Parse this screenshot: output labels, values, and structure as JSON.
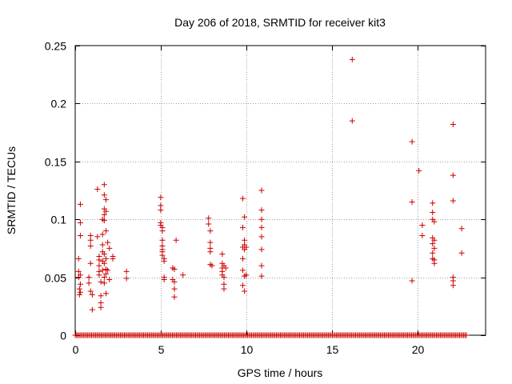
{
  "chart_data": {
    "type": "scatter",
    "title": "Day 206 of 2018, SRMTID for receiver kit3",
    "xlabel": "GPS time / hours",
    "ylabel": "SRMTID / TECUs",
    "xlim": [
      0,
      24
    ],
    "ylim": [
      0,
      0.25
    ],
    "xticks": [
      0,
      5,
      10,
      15,
      20
    ],
    "xtick_labels": [
      "0",
      "5",
      "10",
      "15",
      "20"
    ],
    "yticks": [
      0,
      0.05,
      0.1,
      0.15,
      0.2,
      0.25
    ],
    "ytick_labels": [
      "0",
      "0.05",
      "0.1",
      "0.15",
      "0.2",
      "0.25"
    ],
    "grid": true,
    "marker": "+",
    "color": "#cc0000",
    "baseline_zero": {
      "x_start": 0.0,
      "x_end": 22.9,
      "step": 0.08,
      "value": 0
    },
    "points": [
      [
        0.2,
        0.066
      ],
      [
        0.2,
        0.055
      ],
      [
        0.2,
        0.05
      ],
      [
        0.25,
        0.04
      ],
      [
        0.25,
        0.035
      ],
      [
        0.3,
        0.113
      ],
      [
        0.3,
        0.097
      ],
      [
        0.3,
        0.086
      ],
      [
        0.3,
        0.052
      ],
      [
        0.3,
        0.044
      ],
      [
        0.3,
        0.037
      ],
      [
        0.8,
        0.05
      ],
      [
        0.8,
        0.045
      ],
      [
        0.9,
        0.086
      ],
      [
        0.9,
        0.082
      ],
      [
        0.9,
        0.077
      ],
      [
        0.9,
        0.062
      ],
      [
        0.9,
        0.038
      ],
      [
        1.0,
        0.035
      ],
      [
        1.0,
        0.022
      ],
      [
        1.3,
        0.126
      ],
      [
        1.3,
        0.085
      ],
      [
        1.4,
        0.068
      ],
      [
        1.4,
        0.065
      ],
      [
        1.4,
        0.06
      ],
      [
        1.4,
        0.055
      ],
      [
        1.4,
        0.052
      ],
      [
        1.5,
        0.046
      ],
      [
        1.5,
        0.034
      ],
      [
        1.5,
        0.028
      ],
      [
        1.5,
        0.024
      ],
      [
        1.6,
        0.1
      ],
      [
        1.6,
        0.087
      ],
      [
        1.6,
        0.078
      ],
      [
        1.6,
        0.072
      ],
      [
        1.6,
        0.064
      ],
      [
        1.6,
        0.056
      ],
      [
        1.7,
        0.13
      ],
      [
        1.7,
        0.121
      ],
      [
        1.7,
        0.109
      ],
      [
        1.7,
        0.104
      ],
      [
        1.7,
        0.099
      ],
      [
        1.7,
        0.07
      ],
      [
        1.7,
        0.062
      ],
      [
        1.7,
        0.05
      ],
      [
        1.7,
        0.045
      ],
      [
        1.8,
        0.117
      ],
      [
        1.8,
        0.107
      ],
      [
        1.8,
        0.09
      ],
      [
        1.8,
        0.066
      ],
      [
        1.8,
        0.057
      ],
      [
        1.8,
        0.053
      ],
      [
        1.8,
        0.036
      ],
      [
        1.9,
        0.08
      ],
      [
        1.9,
        0.056
      ],
      [
        2.0,
        0.075
      ],
      [
        2.0,
        0.048
      ],
      [
        2.2,
        0.068
      ],
      [
        2.2,
        0.066
      ],
      [
        3.0,
        0.055
      ],
      [
        3.0,
        0.049
      ],
      [
        5.0,
        0.119
      ],
      [
        5.0,
        0.112
      ],
      [
        5.0,
        0.108
      ],
      [
        5.0,
        0.097
      ],
      [
        5.0,
        0.095
      ],
      [
        5.1,
        0.093
      ],
      [
        5.1,
        0.09
      ],
      [
        5.1,
        0.082
      ],
      [
        5.1,
        0.077
      ],
      [
        5.1,
        0.074
      ],
      [
        5.1,
        0.072
      ],
      [
        5.1,
        0.069
      ],
      [
        5.2,
        0.066
      ],
      [
        5.2,
        0.064
      ],
      [
        5.2,
        0.05
      ],
      [
        5.2,
        0.048
      ],
      [
        5.7,
        0.058
      ],
      [
        5.8,
        0.057
      ],
      [
        5.7,
        0.048
      ],
      [
        5.8,
        0.046
      ],
      [
        5.8,
        0.04
      ],
      [
        5.8,
        0.033
      ],
      [
        5.9,
        0.082
      ],
      [
        6.3,
        0.052
      ],
      [
        7.8,
        0.101
      ],
      [
        7.8,
        0.096
      ],
      [
        7.9,
        0.09
      ],
      [
        7.9,
        0.08
      ],
      [
        7.9,
        0.075
      ],
      [
        7.9,
        0.072
      ],
      [
        7.9,
        0.061
      ],
      [
        8.0,
        0.06
      ],
      [
        8.6,
        0.07
      ],
      [
        8.6,
        0.062
      ],
      [
        8.6,
        0.058
      ],
      [
        8.6,
        0.055
      ],
      [
        8.6,
        0.052
      ],
      [
        8.7,
        0.06
      ],
      [
        8.7,
        0.05
      ],
      [
        8.7,
        0.044
      ],
      [
        8.7,
        0.04
      ],
      [
        8.8,
        0.058
      ],
      [
        9.8,
        0.118
      ],
      [
        9.8,
        0.093
      ],
      [
        9.8,
        0.076
      ],
      [
        9.8,
        0.066
      ],
      [
        9.8,
        0.056
      ],
      [
        9.8,
        0.043
      ],
      [
        9.9,
        0.102
      ],
      [
        9.9,
        0.082
      ],
      [
        9.9,
        0.078
      ],
      [
        9.9,
        0.074
      ],
      [
        9.9,
        0.051
      ],
      [
        9.9,
        0.038
      ],
      [
        10.0,
        0.076
      ],
      [
        10.0,
        0.052
      ],
      [
        10.9,
        0.125
      ],
      [
        10.9,
        0.108
      ],
      [
        10.9,
        0.1
      ],
      [
        10.9,
        0.093
      ],
      [
        10.9,
        0.085
      ],
      [
        10.9,
        0.074
      ],
      [
        10.9,
        0.06
      ],
      [
        10.9,
        0.051
      ],
      [
        16.2,
        0.238
      ],
      [
        16.2,
        0.185
      ],
      [
        19.7,
        0.167
      ],
      [
        19.7,
        0.115
      ],
      [
        19.7,
        0.047
      ],
      [
        20.1,
        0.142
      ],
      [
        20.3,
        0.095
      ],
      [
        20.3,
        0.086
      ],
      [
        20.9,
        0.114
      ],
      [
        20.9,
        0.106
      ],
      [
        20.9,
        0.1
      ],
      [
        20.9,
        0.084
      ],
      [
        20.9,
        0.079
      ],
      [
        20.9,
        0.071
      ],
      [
        20.9,
        0.066
      ],
      [
        21.0,
        0.082
      ],
      [
        21.0,
        0.075
      ],
      [
        21.0,
        0.065
      ],
      [
        21.0,
        0.062
      ],
      [
        21.0,
        0.098
      ],
      [
        22.1,
        0.182
      ],
      [
        22.1,
        0.138
      ],
      [
        22.1,
        0.116
      ],
      [
        22.1,
        0.05
      ],
      [
        22.1,
        0.047
      ],
      [
        22.1,
        0.043
      ],
      [
        22.6,
        0.092
      ],
      [
        22.6,
        0.071
      ]
    ]
  }
}
